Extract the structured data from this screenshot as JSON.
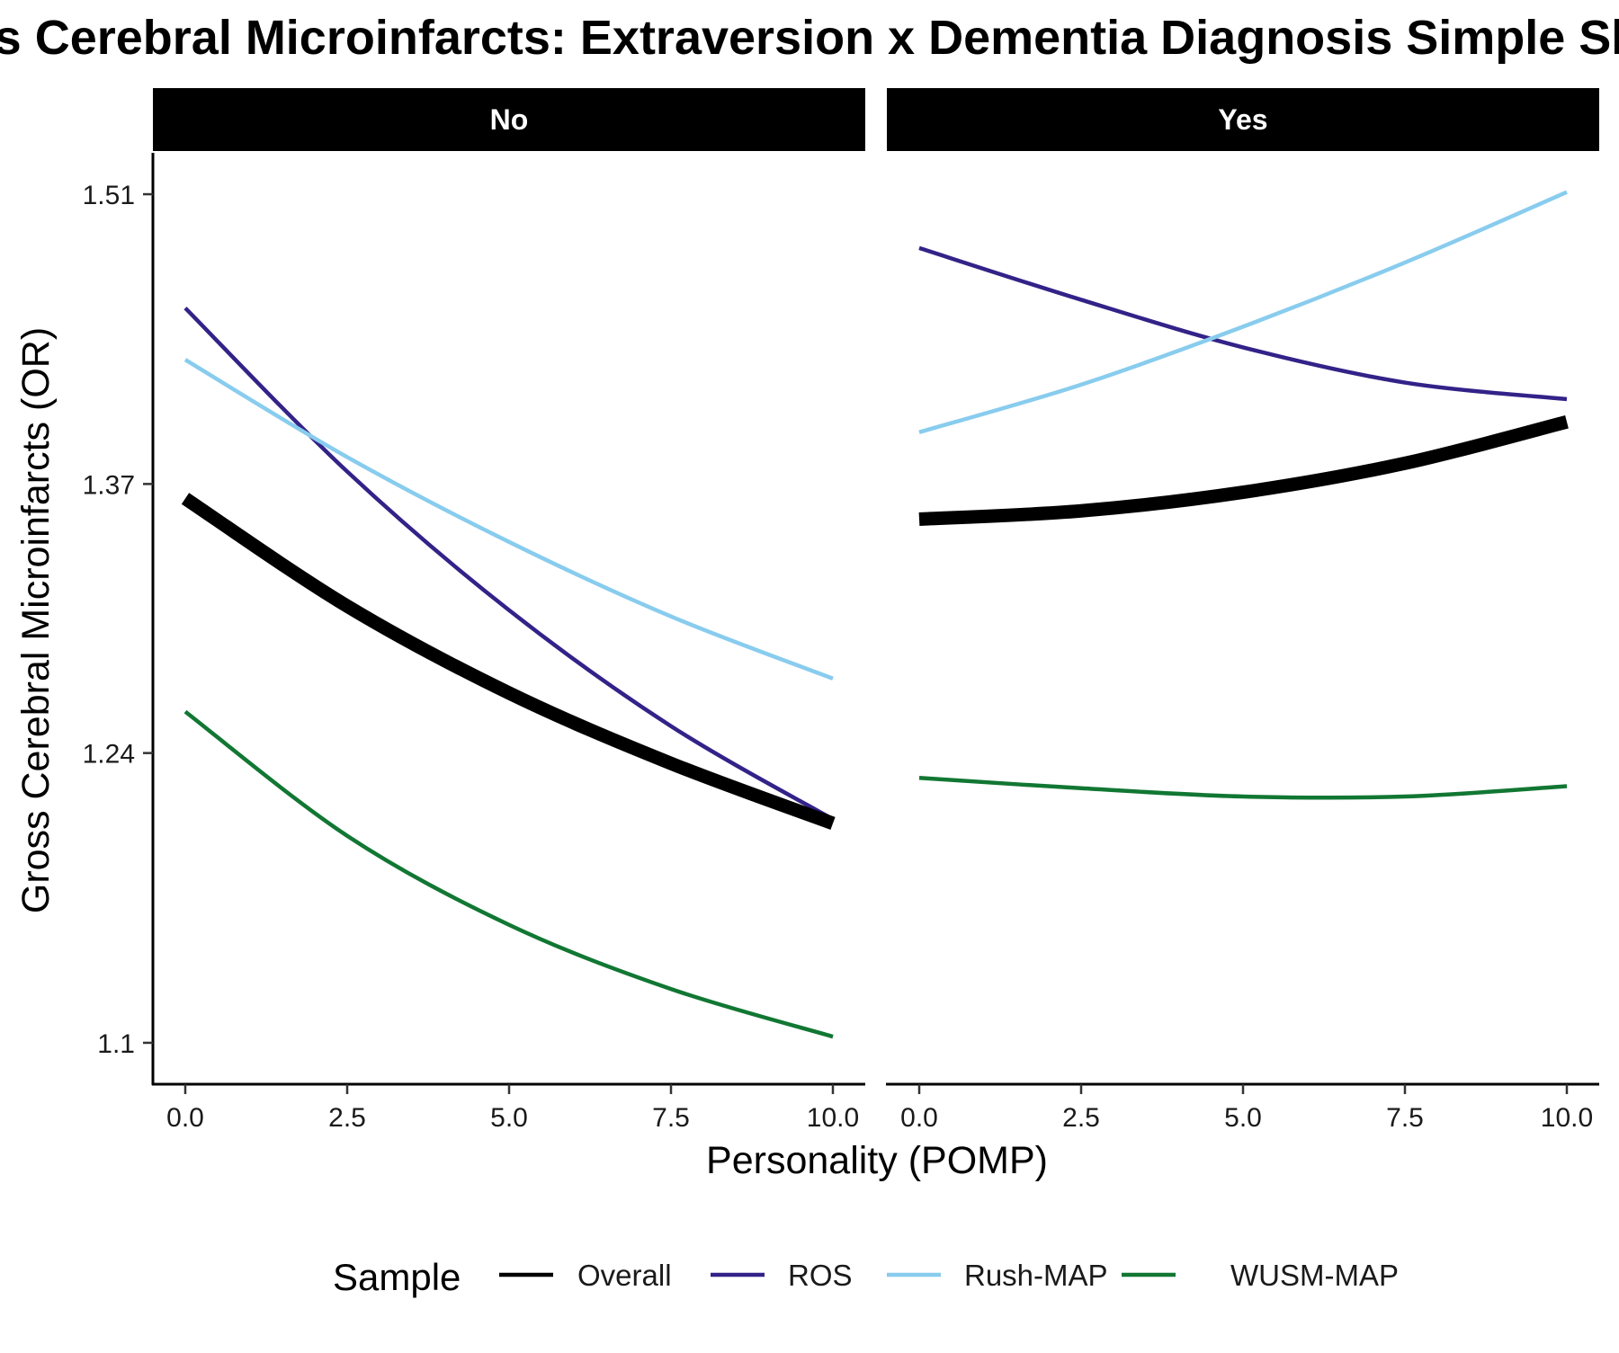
{
  "chart_data": {
    "type": "line",
    "title": "Gross Cerebral Microinfarcts: Extraversion x Dementia Diagnosis Simple Slopes",
    "xlabel": "Personality (POMP)",
    "ylabel": "Gross Cerebral Microinfarcts (OR)",
    "xlim": [
      -0.5,
      10.5
    ],
    "ylim": [
      1.08,
      1.53
    ],
    "x_ticks": [
      0,
      2.5,
      5,
      7.5,
      10
    ],
    "x_tick_labels": [
      "0.0",
      "2.5",
      "5.0",
      "7.5",
      "10.0"
    ],
    "y_ticks": [
      1.1,
      1.24,
      1.37,
      1.51
    ],
    "y_tick_labels": [
      "1.1",
      "1.24",
      "1.37",
      "1.51"
    ],
    "grid": false,
    "legend": {
      "title": "Sample",
      "position": "bottom",
      "entries": [
        "Overall",
        "ROS",
        "Rush-MAP",
        "WUSM-MAP"
      ]
    },
    "panels": [
      {
        "label": "No",
        "series": [
          {
            "name": "Overall",
            "color": "#000000",
            "width": "thick",
            "x": [
              0,
              2.5,
              5,
              7.5,
              10
            ],
            "y": [
              1.363,
              1.311,
              1.269,
              1.235,
              1.206
            ]
          },
          {
            "name": "ROS",
            "color": "#332288",
            "width": "normal",
            "x": [
              0,
              2.5,
              5,
              7.5,
              10
            ],
            "y": [
              1.455,
              1.376,
              1.309,
              1.253,
              1.208
            ]
          },
          {
            "name": "Rush-MAP",
            "color": "#88CCEE",
            "width": "normal",
            "x": [
              0,
              2.5,
              5,
              7.5,
              10
            ],
            "y": [
              1.43,
              1.383,
              1.342,
              1.306,
              1.276
            ]
          },
          {
            "name": "WUSM-MAP",
            "color": "#117733",
            "width": "normal",
            "x": [
              0,
              2.5,
              5,
              7.5,
              10
            ],
            "y": [
              1.26,
              1.2,
              1.157,
              1.126,
              1.103
            ]
          }
        ]
      },
      {
        "label": "Yes",
        "series": [
          {
            "name": "Overall",
            "color": "#000000",
            "width": "thick",
            "x": [
              0,
              2.5,
              5,
              7.5,
              10
            ],
            "y": [
              1.353,
              1.357,
              1.366,
              1.38,
              1.4
            ]
          },
          {
            "name": "ROS",
            "color": "#332288",
            "width": "normal",
            "x": [
              0,
              2.5,
              5,
              7.5,
              10
            ],
            "y": [
              1.484,
              1.459,
              1.436,
              1.419,
              1.411
            ]
          },
          {
            "name": "Rush-MAP",
            "color": "#88CCEE",
            "width": "normal",
            "x": [
              0,
              2.5,
              5,
              7.5,
              10
            ],
            "y": [
              1.395,
              1.418,
              1.446,
              1.477,
              1.511
            ]
          },
          {
            "name": "WUSM-MAP",
            "color": "#117733",
            "width": "normal",
            "x": [
              0,
              2.5,
              5,
              7.5,
              10
            ],
            "y": [
              1.228,
              1.223,
              1.219,
              1.219,
              1.224
            ]
          }
        ]
      }
    ]
  }
}
